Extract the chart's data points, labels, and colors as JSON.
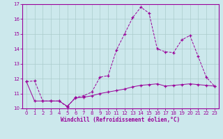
{
  "xlabel": "Windchill (Refroidissement éolien,°C)",
  "bg_color": "#cce8ec",
  "line_color": "#990099",
  "grid_color": "#aacccc",
  "x_values": [
    0,
    1,
    2,
    3,
    4,
    5,
    6,
    7,
    8,
    9,
    10,
    11,
    12,
    13,
    14,
    15,
    16,
    17,
    18,
    19,
    20,
    21,
    22,
    23
  ],
  "line1_y": [
    11.8,
    11.85,
    10.5,
    10.5,
    10.5,
    10.1,
    10.75,
    10.85,
    11.1,
    12.1,
    12.2,
    13.9,
    15.0,
    16.1,
    16.8,
    16.4,
    14.0,
    13.8,
    13.75,
    14.6,
    14.9,
    13.5,
    12.1,
    11.5
  ],
  "line2_y": [
    11.8,
    10.5,
    10.5,
    10.5,
    10.5,
    10.15,
    10.7,
    10.75,
    10.85,
    11.0,
    11.1,
    11.2,
    11.3,
    11.45,
    11.55,
    11.6,
    11.65,
    11.5,
    11.55,
    11.6,
    11.65,
    11.6,
    11.55,
    11.5
  ],
  "ylim": [
    10.0,
    17.0
  ],
  "ytick_step": 1,
  "xlim": [
    -0.5,
    23.5
  ],
  "xticks": [
    0,
    1,
    2,
    3,
    4,
    5,
    6,
    7,
    8,
    9,
    10,
    11,
    12,
    13,
    14,
    15,
    16,
    17,
    18,
    19,
    20,
    21,
    22,
    23
  ]
}
